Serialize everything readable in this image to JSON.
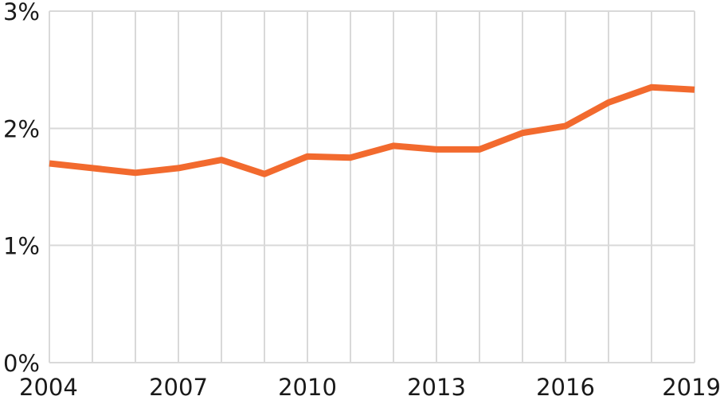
{
  "chart_data": {
    "type": "line",
    "title": "",
    "xlabel": "",
    "ylabel": "",
    "x": [
      2004,
      2005,
      2006,
      2007,
      2008,
      2009,
      2010,
      2011,
      2012,
      2013,
      2014,
      2015,
      2016,
      2017,
      2018,
      2019
    ],
    "series": [
      {
        "values": [
          1.7,
          1.66,
          1.62,
          1.66,
          1.73,
          1.61,
          1.76,
          1.75,
          1.85,
          1.82,
          1.82,
          1.96,
          2.02,
          2.22,
          2.35,
          2.33
        ],
        "color": "#f26a2e"
      }
    ],
    "xlim": [
      2004,
      2019
    ],
    "ylim": [
      0,
      3
    ],
    "x_tick_labels": [
      "2004",
      "2007",
      "2010",
      "2013",
      "2016",
      "2019"
    ],
    "y_tick_labels": [
      "0%",
      "1%",
      "2%",
      "3%"
    ],
    "grid": "vertical-yearly-and-horizontal",
    "legend": "none"
  }
}
